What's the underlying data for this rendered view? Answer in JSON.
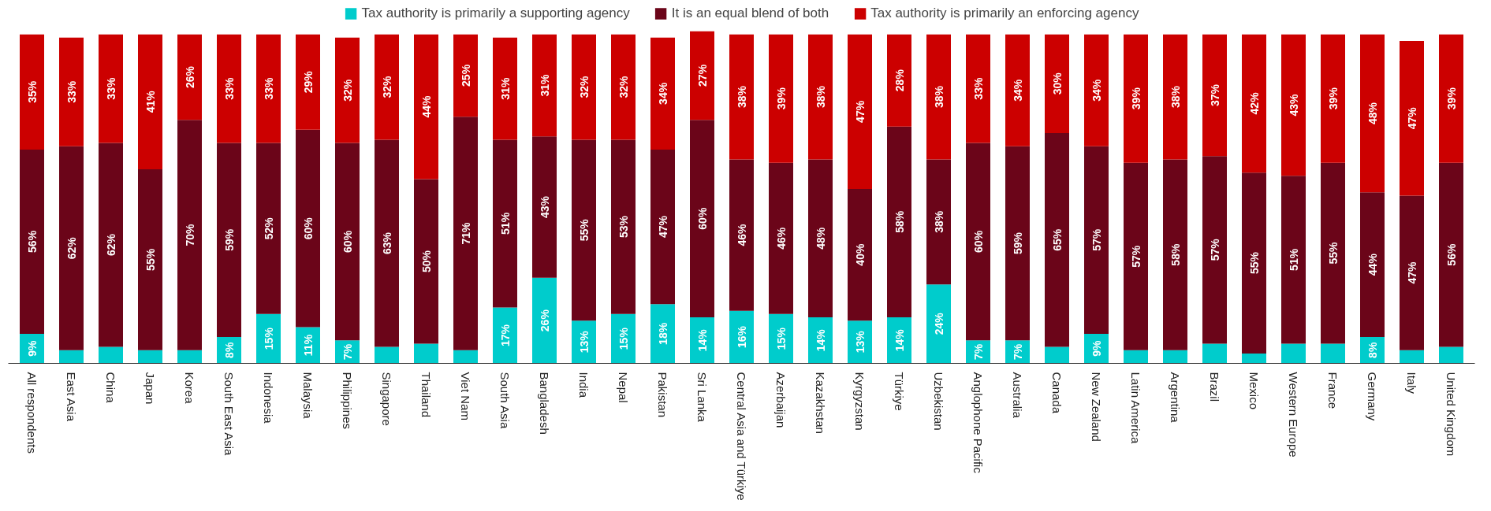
{
  "chart_data": {
    "type": "bar",
    "stacked": true,
    "legend": "top",
    "tick_labels": "x",
    "grid": false,
    "ylim": [
      0,
      101
    ],
    "categories": [
      "All respondents",
      "East Asia",
      "China",
      "Japan",
      "Korea",
      "South East Asia",
      "Indonesia",
      "Malaysia",
      "Philippines",
      "Singapore",
      "Thailand",
      "Viet Nam",
      "South Asia",
      "Bangladesh",
      "India",
      "Nepal",
      "Pakistan",
      "Sri Lanka",
      "Central Asia and Türkiye",
      "Azerbaijan",
      "Kazakhstan",
      "Kyrgyzstan",
      "Türkiye",
      "Uzbekistan",
      "Anglophone Pacific",
      "Australia",
      "Canada",
      "New Zealand",
      "Latin America",
      "Argentina",
      "Brazil",
      "Mexico",
      "Western Europe",
      "France",
      "Germany",
      "Italy",
      "United Kingdom"
    ],
    "series": [
      {
        "name": "Tax authority is primarily a supporting agency",
        "color": "#00cccc",
        "values": [
          9,
          4,
          5,
          4,
          4,
          8,
          15,
          11,
          7,
          5,
          6,
          4,
          17,
          26,
          13,
          15,
          18,
          14,
          16,
          15,
          14,
          13,
          14,
          24,
          7,
          7,
          5,
          9,
          4,
          4,
          6,
          3,
          6,
          6,
          8,
          4,
          5
        ],
        "value_labels": [
          "9%",
          null,
          null,
          null,
          null,
          "8%",
          "15%",
          "11%",
          "7%",
          null,
          null,
          null,
          "17%",
          "26%",
          "13%",
          "15%",
          "18%",
          "14%",
          "16%",
          "15%",
          "14%",
          "13%",
          "14%",
          "24%",
          "7%",
          "7%",
          null,
          "9%",
          null,
          null,
          null,
          null,
          null,
          null,
          "8%",
          null,
          null
        ]
      },
      {
        "name": "It is an equal blend of both",
        "color": "#6b0519",
        "values": [
          56,
          62,
          62,
          55,
          70,
          59,
          52,
          60,
          60,
          63,
          50,
          71,
          51,
          43,
          55,
          53,
          47,
          60,
          46,
          46,
          48,
          40,
          58,
          38,
          60,
          59,
          65,
          57,
          57,
          58,
          57,
          55,
          51,
          55,
          44,
          47,
          56
        ],
        "value_labels": [
          "56%",
          "62%",
          "62%",
          "55%",
          "70%",
          "59%",
          "52%",
          "60%",
          "60%",
          "63%",
          "50%",
          "71%",
          "51%",
          "43%",
          "55%",
          "53%",
          "47%",
          "60%",
          "46%",
          "46%",
          "48%",
          "40%",
          "58%",
          "38%",
          "60%",
          "59%",
          "65%",
          "57%",
          "57%",
          "58%",
          "57%",
          "55%",
          "51%",
          "55%",
          "44%",
          "47%",
          "56%"
        ]
      },
      {
        "name": "Tax authority is primarily an enforcing agency",
        "color": "#cc0000",
        "values": [
          35,
          33,
          33,
          41,
          26,
          33,
          33,
          29,
          32,
          32,
          44,
          25,
          31,
          31,
          32,
          32,
          34,
          27,
          38,
          39,
          38,
          47,
          28,
          38,
          33,
          34,
          30,
          34,
          39,
          38,
          37,
          42,
          43,
          39,
          48,
          47,
          39
        ],
        "value_labels": [
          "35%",
          "33%",
          "33%",
          "41%",
          "26%",
          "33%",
          "33%",
          "29%",
          "32%",
          "32%",
          "44%",
          "25%",
          "31%",
          "31%",
          "32%",
          "32%",
          "34%",
          "27%",
          "38%",
          "39%",
          "38%",
          "47%",
          "28%",
          "38%",
          "33%",
          "34%",
          "30%",
          "34%",
          "39%",
          "38%",
          "37%",
          "42%",
          "43%",
          "39%",
          "48%",
          "47%",
          "39%"
        ]
      }
    ]
  }
}
